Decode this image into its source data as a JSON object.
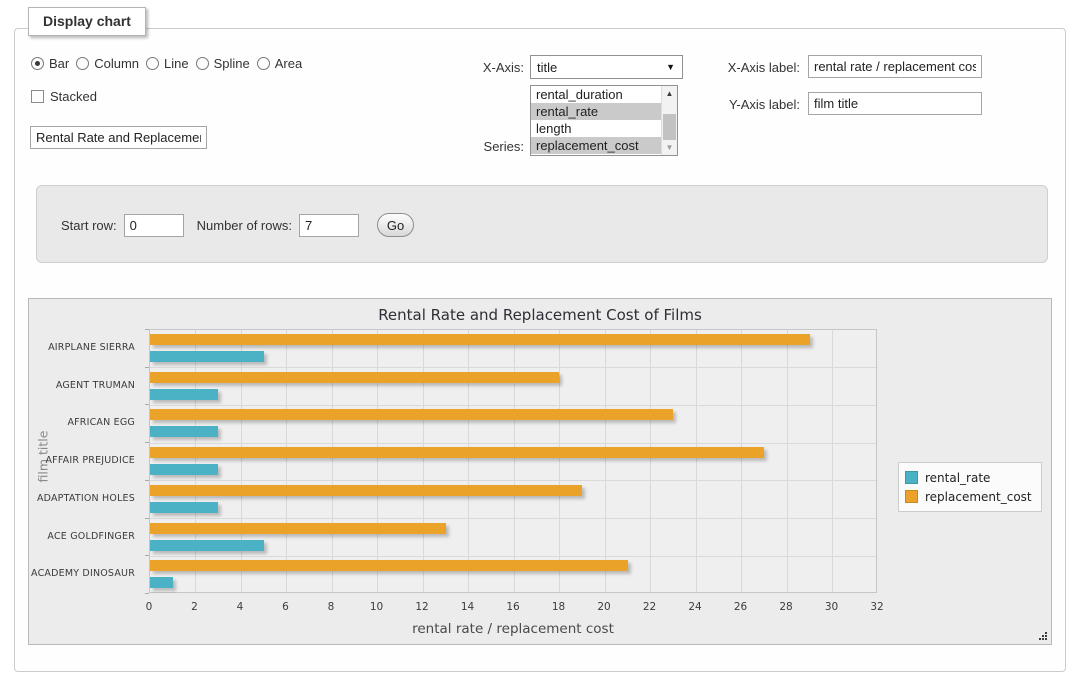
{
  "window": {
    "legend": "Display chart"
  },
  "chart_type": {
    "options": [
      "Bar",
      "Column",
      "Line",
      "Spline",
      "Area"
    ],
    "selected": "Bar"
  },
  "stacked": {
    "label": "Stacked",
    "checked": false
  },
  "chart_title_input": {
    "value": "Rental Rate and Replacement Cost of Films"
  },
  "x_axis_select": {
    "caption": "X-Axis:",
    "selected_value": "title"
  },
  "series_select": {
    "caption": "Series:",
    "options": [
      "rental_duration",
      "rental_rate",
      "length",
      "replacement_cost"
    ],
    "selected": [
      "rental_rate",
      "replacement_cost"
    ]
  },
  "x_axis_label_field": {
    "caption": "X-Axis label:",
    "value": "rental rate / replacement cost"
  },
  "y_axis_label_field": {
    "caption": "Y-Axis label:",
    "value": "film title"
  },
  "row_controls": {
    "start_row_label": "Start row:",
    "start_row_value": "0",
    "num_rows_label": "Number of rows:",
    "num_rows_value": "7",
    "go_label": "Go"
  },
  "icons": {
    "dropdown_arrow": "▼",
    "scroll_up": "▲",
    "scroll_down": "▼"
  },
  "chart_data": {
    "type": "bar",
    "orientation": "horizontal",
    "title": "Rental Rate and Replacement Cost of Films",
    "categories": [
      "AIRPLANE SIERRA",
      "AGENT TRUMAN",
      "AFRICAN EGG",
      "AFFAIR PREJUDICE",
      "ADAPTATION HOLES",
      "ACE GOLDFINGER",
      "ACADEMY DINOSAUR"
    ],
    "series": [
      {
        "name": "rental_rate",
        "color": "#4bb2c5",
        "values": [
          4.99,
          2.99,
          2.99,
          2.99,
          2.99,
          4.99,
          0.99
        ]
      },
      {
        "name": "replacement_cost",
        "color": "#EAA228",
        "values": [
          28.99,
          17.99,
          22.99,
          26.99,
          18.99,
          12.99,
          20.99
        ]
      }
    ],
    "bar_order_top_to_bottom": [
      "replacement_cost",
      "rental_rate"
    ],
    "xlabel": "rental rate / replacement cost",
    "ylabel": "film title",
    "xlim": [
      0,
      32
    ],
    "xticks": [
      0,
      2,
      4,
      6,
      8,
      10,
      12,
      14,
      16,
      18,
      20,
      22,
      24,
      26,
      28,
      30,
      32
    ],
    "grid": true,
    "legend_position": "right"
  }
}
